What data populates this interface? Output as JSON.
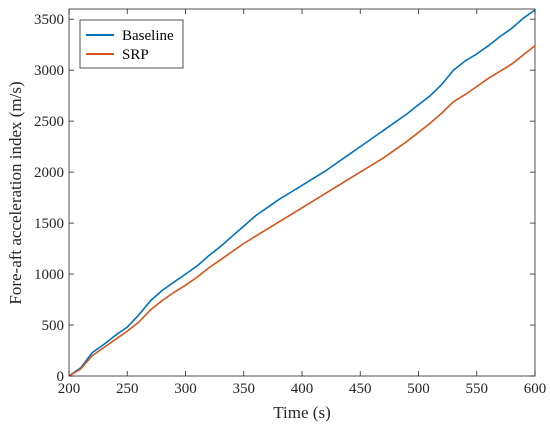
{
  "chart_data": {
    "type": "line",
    "title": "",
    "xlabel": "Time (s)",
    "ylabel": "Fore-aft acceleration index (m/s)",
    "xlim": [
      200,
      600
    ],
    "ylim": [
      0,
      3600
    ],
    "xticks": [
      "200",
      "250",
      "300",
      "350",
      "400",
      "450",
      "500",
      "550",
      "600"
    ],
    "yticks": [
      "0",
      "500",
      "1000",
      "1500",
      "2000",
      "2500",
      "3000",
      "3500"
    ],
    "grid": false,
    "legend_position": "top-left",
    "series": [
      {
        "name": "Baseline",
        "color": "#0072bd",
        "x": [
          200,
          210,
          220,
          230,
          240,
          250,
          260,
          270,
          280,
          290,
          300,
          310,
          320,
          330,
          340,
          350,
          360,
          370,
          380,
          390,
          400,
          410,
          420,
          430,
          440,
          450,
          460,
          470,
          480,
          490,
          500,
          510,
          520,
          530,
          540,
          550,
          560,
          570,
          580,
          590,
          600
        ],
        "y": [
          0,
          80,
          230,
          310,
          400,
          480,
          600,
          740,
          840,
          920,
          1000,
          1080,
          1180,
          1270,
          1370,
          1470,
          1570,
          1650,
          1730,
          1800,
          1870,
          1940,
          2010,
          2090,
          2170,
          2250,
          2330,
          2410,
          2490,
          2570,
          2660,
          2750,
          2860,
          3000,
          3090,
          3160,
          3240,
          3330,
          3410,
          3510,
          3590
        ]
      },
      {
        "name": "SRP",
        "color": "#d95319",
        "x": [
          200,
          210,
          220,
          230,
          240,
          250,
          260,
          270,
          280,
          290,
          300,
          310,
          320,
          330,
          340,
          350,
          360,
          370,
          380,
          390,
          400,
          410,
          420,
          430,
          440,
          450,
          460,
          470,
          480,
          490,
          500,
          510,
          520,
          530,
          540,
          550,
          560,
          570,
          580,
          590,
          600
        ],
        "y": [
          0,
          70,
          200,
          280,
          360,
          440,
          530,
          650,
          740,
          820,
          890,
          970,
          1060,
          1140,
          1220,
          1300,
          1370,
          1440,
          1510,
          1580,
          1650,
          1720,
          1790,
          1860,
          1930,
          2000,
          2070,
          2140,
          2220,
          2300,
          2390,
          2480,
          2580,
          2690,
          2760,
          2840,
          2920,
          2990,
          3060,
          3150,
          3240
        ]
      }
    ]
  }
}
